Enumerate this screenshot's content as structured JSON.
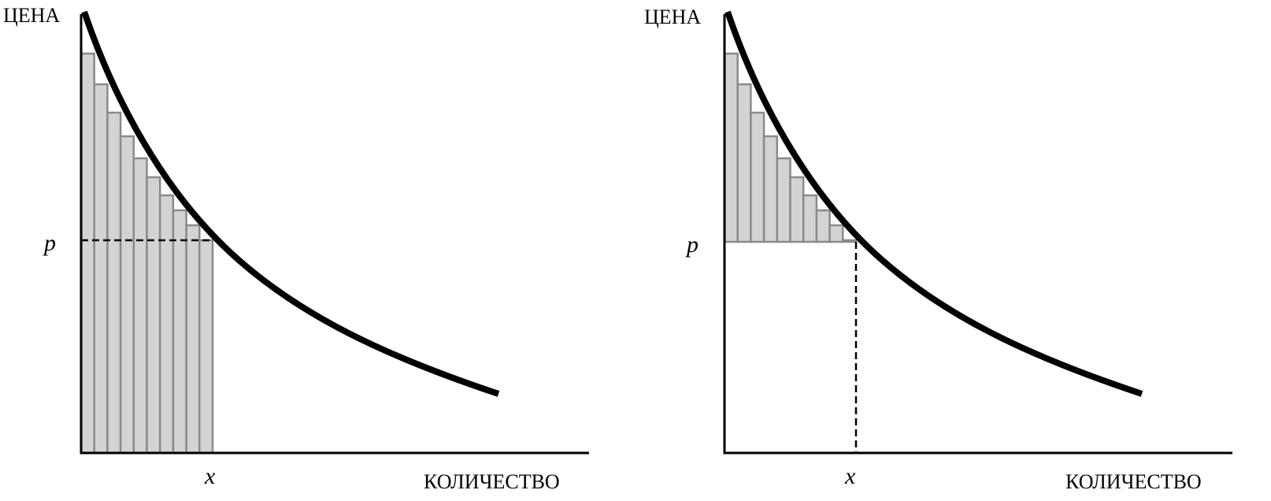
{
  "panels": [
    {
      "y_axis_label": "ЦЕНА",
      "price_label": "p",
      "quantity_label": "x",
      "x_axis_label": "КОЛИЧЕСТВО"
    },
    {
      "y_axis_label": "ЦЕНА",
      "price_label": "p",
      "quantity_label": "x",
      "x_axis_label": "КОЛИЧЕСТВО"
    }
  ]
}
